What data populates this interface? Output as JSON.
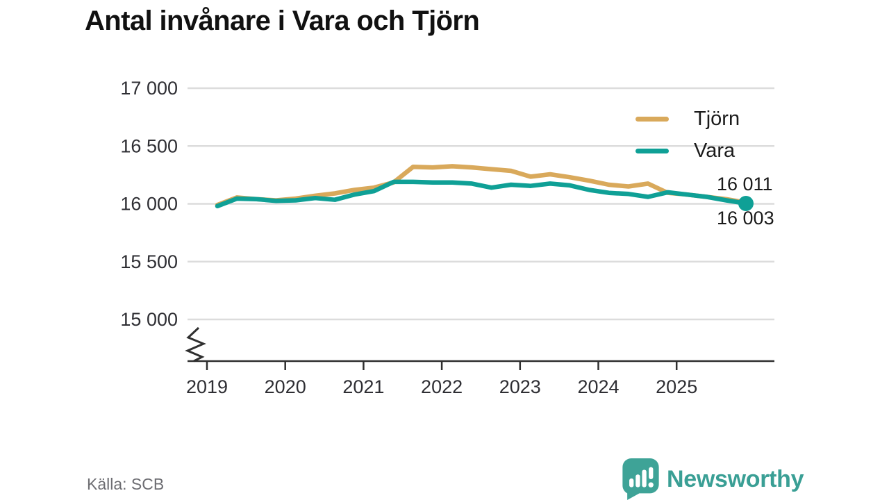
{
  "title": "Antal invånare i Vara och Tjörn",
  "source": "Källa: SCB",
  "brand": {
    "name": "Newsworthy",
    "icon": "newsworthy-chart-bubble-icon",
    "color": "#3A9F95"
  },
  "colors": {
    "background": "#FFFFFF",
    "grid": "#DCDCDC",
    "axis": "#2F2F2F",
    "tick_label": "#2E2E33",
    "text": "#1A1A1A",
    "muted_text": "#6D6D72"
  },
  "chart_data": {
    "type": "line",
    "title": "Antal invånare i Vara och Tjörn",
    "x_labels": [
      "2019 Q1",
      "2019 Q2",
      "2019 Q3",
      "2019 Q4",
      "2020 Q1",
      "2020 Q2",
      "2020 Q3",
      "2020 Q4",
      "2021 Q1",
      "2021 Q2",
      "2021 Q3",
      "2021 Q4",
      "2022 Q1",
      "2022 Q2",
      "2022 Q3",
      "2022 Q4",
      "2023 Q1",
      "2023 Q2",
      "2023 Q3",
      "2023 Q4",
      "2024 Q1",
      "2024 Q2",
      "2024 Q3",
      "2024 Q4",
      "2025 Q1",
      "2025 Q2",
      "2025 Q3",
      "2025 Q4"
    ],
    "series": [
      {
        "name": "Tjörn",
        "color": "#D9A95B",
        "end_label": "16 011",
        "end_value": 16011,
        "end_dot": false,
        "values": [
          15990,
          16055,
          16040,
          16030,
          16045,
          16070,
          16090,
          16120,
          16140,
          16185,
          16320,
          16315,
          16325,
          16315,
          16300,
          16285,
          16235,
          16255,
          16230,
          16200,
          16165,
          16150,
          16175,
          16095,
          16080,
          16060,
          16040,
          16011
        ]
      },
      {
        "name": "Vara",
        "color": "#0FA096",
        "end_label": "16 003",
        "end_value": 16003,
        "end_dot": true,
        "values": [
          15980,
          16045,
          16040,
          16025,
          16030,
          16050,
          16035,
          16080,
          16110,
          16190,
          16190,
          16185,
          16185,
          16175,
          16140,
          16165,
          16155,
          16175,
          16160,
          16120,
          16095,
          16085,
          16060,
          16100,
          16080,
          16060,
          16030,
          16003
        ]
      }
    ],
    "y_ticks": [
      {
        "label": "17 000",
        "value": 17000
      },
      {
        "label": "16 500",
        "value": 16500
      },
      {
        "label": "16 000",
        "value": 16000
      },
      {
        "label": "15 500",
        "value": 15500
      },
      {
        "label": "15 000",
        "value": 15000
      }
    ],
    "x_ticks": [
      {
        "label": "2019",
        "value": 2019
      },
      {
        "label": "2020",
        "value": 2020
      },
      {
        "label": "2021",
        "value": 2021
      },
      {
        "label": "2022",
        "value": 2022
      },
      {
        "label": "2023",
        "value": 2023
      },
      {
        "label": "2024",
        "value": 2024
      },
      {
        "label": "2025",
        "value": 2025
      }
    ],
    "ylim": [
      15000,
      17000
    ],
    "y_axis_break": true,
    "grid": "horizontal",
    "legend_position": "top-right",
    "source": "Källa: SCB"
  }
}
